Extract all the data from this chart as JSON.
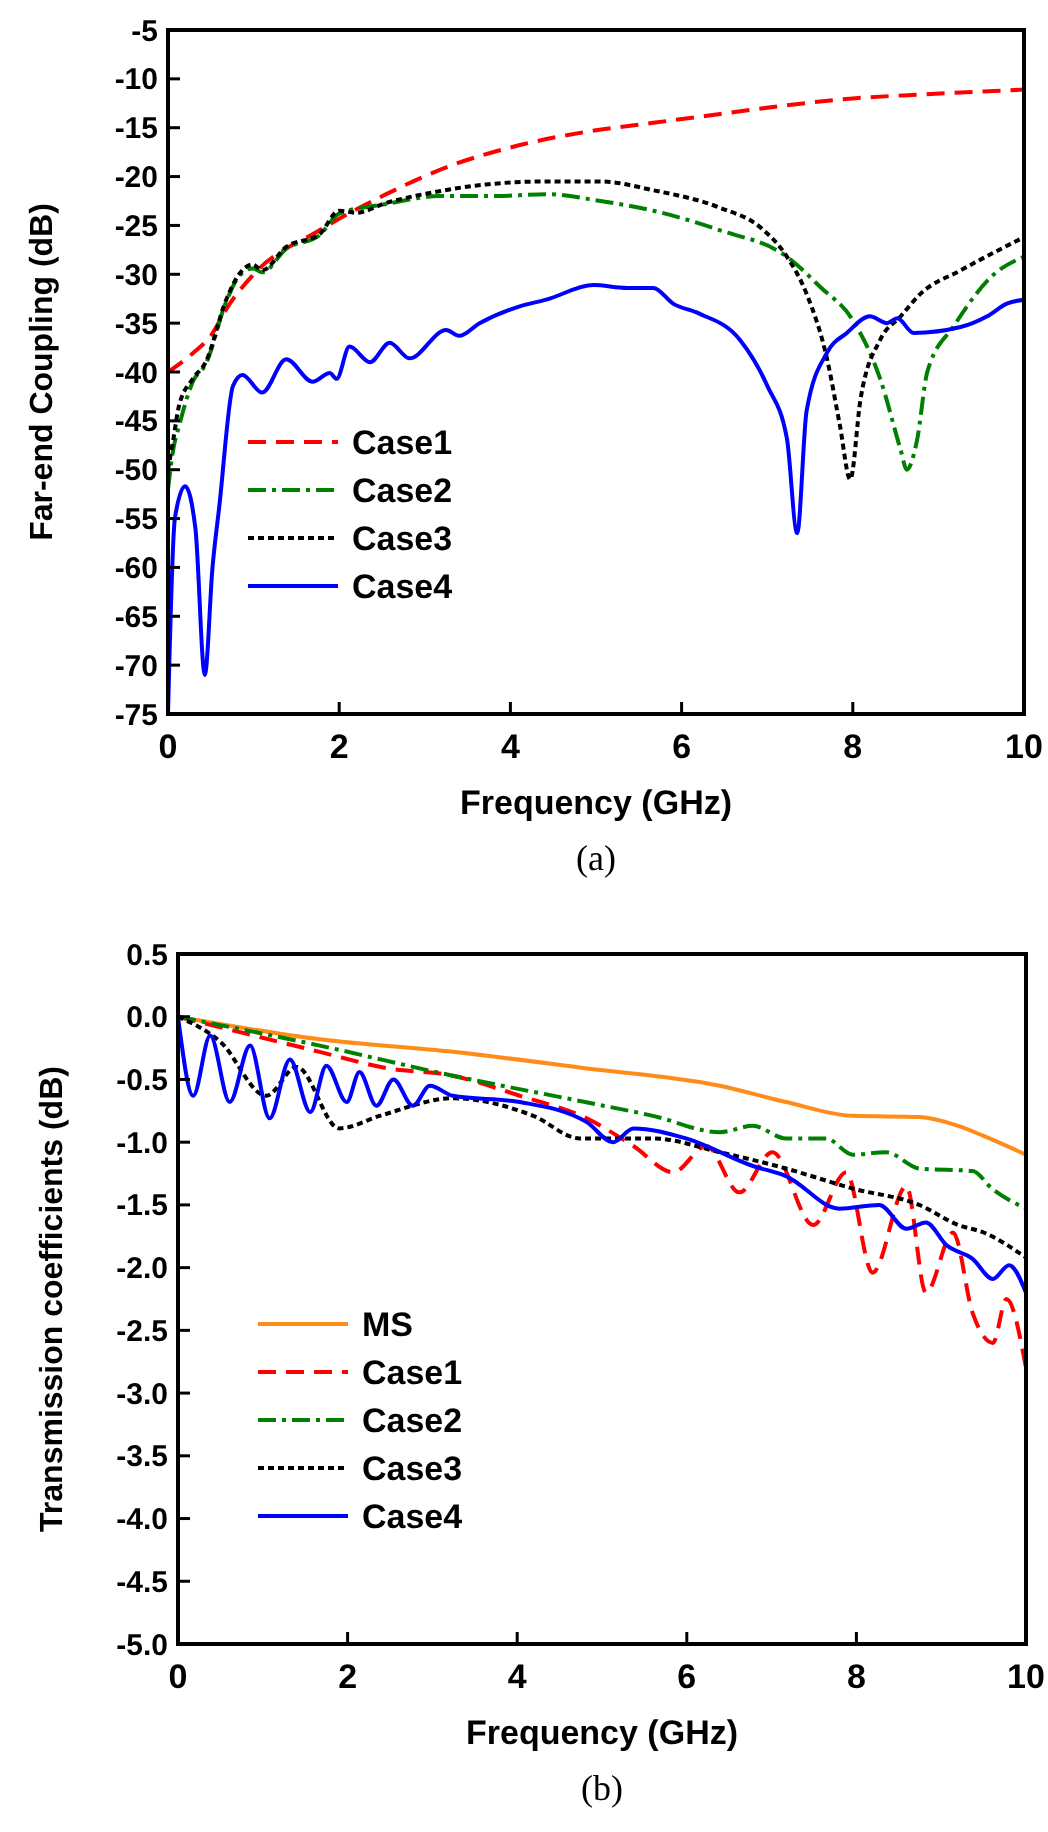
{
  "chart_data": [
    {
      "type": "line",
      "xlabel": "Frequency (GHz)",
      "ylabel": "Far-end Coupling (dB)",
      "annotations": [
        "(a)"
      ],
      "xlim": [
        0,
        10
      ],
      "ylim": [
        -75,
        -5
      ],
      "xticks": [
        0,
        2,
        4,
        6,
        8,
        10
      ],
      "yticks": [
        -75,
        -70,
        -65,
        -60,
        -55,
        -50,
        -45,
        -40,
        -35,
        -30,
        -25,
        -20,
        -15,
        -10,
        -5
      ],
      "grid": false,
      "legend": "bottom left",
      "marker": "none",
      "series": [
        {
          "name": "Case1",
          "color": "#ff0000",
          "line_style": "dashed",
          "x": [
            0,
            0.3,
            0.5,
            0.7,
            1,
            1.77,
            2.55,
            3.33,
            4.1,
            4.9,
            5.67,
            6.45,
            7.23,
            8,
            8.8,
            10
          ],
          "values": [
            -40,
            -38,
            -36.3,
            -33.3,
            -30,
            -25.5,
            -21.8,
            -18.8,
            -16.8,
            -15.4,
            -14.5,
            -13.6,
            -12.7,
            -12,
            -11.6,
            -11.1
          ]
        },
        {
          "name": "Case2",
          "color": "#008000",
          "line_style": "dashdot",
          "x": [
            0,
            0.06,
            0.13,
            0.29,
            0.44,
            0.68,
            0.83,
            0.99,
            1.1,
            1.38,
            1.77,
            2,
            2.55,
            3.17,
            3.8,
            4.42,
            5.05,
            5.67,
            6.45,
            7.23,
            7.62,
            8,
            8.32,
            8.56,
            8.63,
            8.75,
            8.87,
            9.18,
            9.65,
            10
          ],
          "values": [
            -52,
            -48,
            -45.5,
            -41,
            -39.2,
            -32.8,
            -30.2,
            -29.4,
            -29.8,
            -27.4,
            -26,
            -23.8,
            -22.8,
            -22,
            -22,
            -21.8,
            -22.5,
            -23.5,
            -25.5,
            -28.2,
            -31.3,
            -34.7,
            -40.7,
            -48,
            -50,
            -47,
            -40,
            -35.3,
            -30,
            -28.2
          ]
        },
        {
          "name": "Case3",
          "color": "#000000",
          "line_style": "dotted",
          "x": [
            0,
            0.06,
            0.13,
            0.29,
            0.44,
            0.68,
            0.83,
            0.99,
            1.1,
            1.38,
            1.77,
            2,
            2.2,
            2.55,
            3.17,
            3.72,
            4.42,
            5.05,
            5.67,
            6.45,
            6.92,
            7.23,
            7.46,
            7.7,
            7.85,
            7.97,
            8.09,
            8.32,
            8.56,
            8.79,
            9.26,
            10
          ],
          "values": [
            -50,
            -47,
            -43.4,
            -40.7,
            -39,
            -32.6,
            -30,
            -29,
            -29.6,
            -27.2,
            -25.9,
            -23.5,
            -23.7,
            -22.7,
            -21.5,
            -20.8,
            -20.5,
            -20.5,
            -21.4,
            -23.2,
            -25.2,
            -28.2,
            -32,
            -38.7,
            -45.5,
            -51,
            -42.8,
            -36.7,
            -34.3,
            -32,
            -29.6,
            -26.2
          ]
        },
        {
          "name": "Case4",
          "color": "#0000ff",
          "line_style": "solid",
          "x": [
            0,
            0.08,
            0.2,
            0.32,
            0.43,
            0.52,
            0.6,
            0.76,
            0.87,
            1.1,
            1.38,
            1.69,
            1.89,
            1.97,
            2.12,
            2.36,
            2.59,
            2.82,
            3.25,
            3.4,
            3.64,
            4.1,
            4.42,
            4.97,
            5.36,
            5.67,
            5.9,
            6.2,
            6.68,
            7,
            7.23,
            7.35,
            7.46,
            7.7,
            7.93,
            8.2,
            8.4,
            8.52,
            8.71,
            9.26,
            9.57,
            9.8,
            10
          ],
          "values": [
            -75,
            -55,
            -51.7,
            -56,
            -71,
            -60,
            -53.7,
            -41.4,
            -40.3,
            -42.1,
            -38.7,
            -41,
            -40.1,
            -40.7,
            -37.4,
            -39,
            -37,
            -38.6,
            -35.7,
            -36.3,
            -35,
            -33.3,
            -32.6,
            -31.1,
            -31.4,
            -31.4,
            -33,
            -34,
            -36.7,
            -41.4,
            -46.8,
            -56.5,
            -44,
            -38,
            -36,
            -34.3,
            -35,
            -34.5,
            -36,
            -35.4,
            -34.3,
            -33,
            -32.6
          ]
        }
      ]
    },
    {
      "type": "line",
      "xlabel": "Frequency (GHz)",
      "ylabel": "Transmission coefficients (dB)",
      "annotations": [
        "(b)"
      ],
      "xlim": [
        0,
        10
      ],
      "ylim": [
        -5,
        0.5
      ],
      "xticks": [
        0,
        2,
        4,
        6,
        8,
        10
      ],
      "yticks": [
        {
          "value": -5,
          "label": "-5.0"
        },
        -4.5,
        {
          "value": -4,
          "label": "-4.0"
        },
        -3.5,
        {
          "value": -3,
          "label": "-3.0"
        },
        -2.5,
        {
          "value": -2,
          "label": "-2.0"
        },
        -1.5,
        {
          "value": -1,
          "label": "-1.0"
        },
        -0.5,
        {
          "value": 0,
          "label": "0.0"
        },
        0.5
      ],
      "grid": false,
      "legend": "bottom left",
      "marker": "none",
      "series": [
        {
          "name": "MS",
          "color": "#ff8c1a",
          "line_style": "solid",
          "x": [
            0,
            1.67,
            3.24,
            4.8,
            6.39,
            7.17,
            7.96,
            8.74,
            9.2,
            9.5,
            10
          ],
          "values": [
            0,
            -0.18,
            -0.28,
            -0.41,
            -0.55,
            -0.68,
            -0.79,
            -0.8,
            -0.87,
            -0.95,
            -1.1
          ]
        },
        {
          "name": "Case1",
          "color": "#ff0000",
          "line_style": "dashed",
          "x": [
            0,
            1.67,
            2.46,
            3.24,
            4.03,
            4.82,
            5.37,
            5.84,
            6.23,
            6.62,
            7.01,
            7.49,
            7.88,
            8.19,
            8.59,
            8.82,
            9.14,
            9.37,
            9.61,
            9.77,
            10
          ],
          "values": [
            0,
            -0.28,
            -0.41,
            -0.47,
            -0.63,
            -0.81,
            -1.03,
            -1.24,
            -1.03,
            -1.4,
            -1.08,
            -1.66,
            -1.24,
            -2.04,
            -1.35,
            -2.2,
            -1.72,
            -2.36,
            -2.6,
            -2.25,
            -2.8
          ]
        },
        {
          "name": "Case2",
          "color": "#008000",
          "line_style": "dashdot",
          "x": [
            0,
            1.67,
            3.24,
            4.8,
            5.6,
            6.39,
            6.78,
            7.17,
            7.64,
            7.96,
            8.35,
            8.74,
            9.37,
            9.6,
            10
          ],
          "values": [
            0,
            -0.23,
            -0.47,
            -0.68,
            -0.79,
            -0.92,
            -0.87,
            -0.97,
            -0.97,
            -1.1,
            -1.08,
            -1.21,
            -1.23,
            -1.37,
            -1.53
          ]
        },
        {
          "name": "Case3",
          "color": "#000000",
          "line_style": "dotted",
          "x": [
            0,
            0.5,
            1.04,
            1.4,
            1.9,
            2.38,
            3.24,
            4.19,
            4.74,
            5.6,
            6.39,
            7.17,
            7.96,
            8.74,
            9.2,
            9.5,
            10
          ],
          "values": [
            0,
            -0.2,
            -0.63,
            -0.4,
            -0.89,
            -0.79,
            -0.65,
            -0.79,
            -0.97,
            -0.97,
            -1.08,
            -1.21,
            -1.37,
            -1.5,
            -1.66,
            -1.72,
            -1.92
          ]
        },
        {
          "name": "Case4",
          "color": "#0000ff",
          "line_style": "solid",
          "x": [
            0,
            0.18,
            0.38,
            0.61,
            0.85,
            1.08,
            1.32,
            1.56,
            1.75,
            1.99,
            2.14,
            2.34,
            2.54,
            2.77,
            2.97,
            3.24,
            4.03,
            4.82,
            5.13,
            5.37,
            5.99,
            6.78,
            7.17,
            7.8,
            8.27,
            8.59,
            8.82,
            9.06,
            9.37,
            9.61,
            9.8,
            10
          ],
          "values": [
            0,
            -0.63,
            -0.15,
            -0.68,
            -0.23,
            -0.81,
            -0.34,
            -0.76,
            -0.39,
            -0.68,
            -0.44,
            -0.71,
            -0.5,
            -0.71,
            -0.55,
            -0.63,
            -0.68,
            -0.84,
            -1,
            -0.89,
            -0.97,
            -1.19,
            -1.27,
            -1.53,
            -1.5,
            -1.69,
            -1.64,
            -1.82,
            -1.93,
            -2.09,
            -1.98,
            -2.2
          ]
        }
      ]
    }
  ]
}
